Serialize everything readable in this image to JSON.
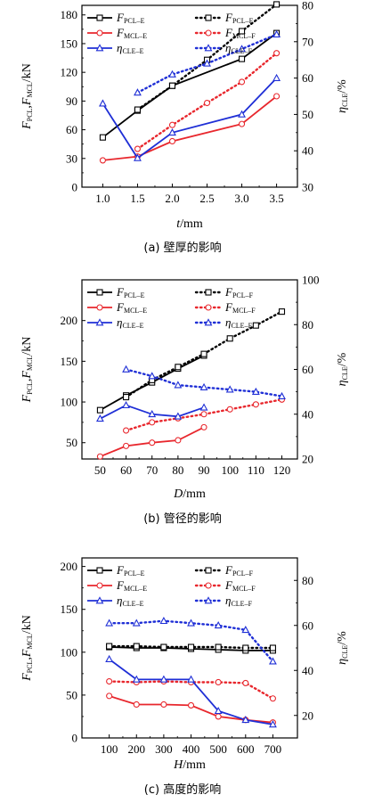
{
  "colors": {
    "black": "#000000",
    "red": "#e8272d",
    "blue": "#1f2fd6"
  },
  "chart_data": [
    {
      "type": "line",
      "caption": "(a) 壁厚的影响",
      "xlabel": "t",
      "xunit": "/mm",
      "ylabel": "F_PCL, F_MCL/kN",
      "y2label": "η_CLE/%",
      "xlim": [
        0.7,
        3.8
      ],
      "xticks": [
        "1.0",
        "1.5",
        "2.0",
        "2.5",
        "3.0",
        "3.5"
      ],
      "ylim": [
        0,
        190
      ],
      "yticks": [
        "0",
        "30",
        "60",
        "90",
        "120",
        "150",
        "180"
      ],
      "y2lim": [
        30,
        80
      ],
      "y2ticks": [
        "30",
        "40",
        "50",
        "60",
        "70",
        "80"
      ],
      "series": [
        {
          "name": "F_PCL-E",
          "color": "black",
          "style": "solid",
          "marker": "square",
          "axis": "left",
          "x": [
            1.0,
            1.5,
            2.0,
            3.0,
            3.5
          ],
          "y": [
            52,
            80,
            106,
            134,
            161
          ]
        },
        {
          "name": "F_PCL-F",
          "color": "black",
          "style": "dotted",
          "marker": "square",
          "axis": "left",
          "x": [
            1.5,
            2.0,
            2.5,
            3.0,
            3.5
          ],
          "y": [
            81,
            106,
            133,
            163,
            191
          ]
        },
        {
          "name": "F_MCL-E",
          "color": "red",
          "style": "solid",
          "marker": "circle",
          "axis": "left",
          "x": [
            1.0,
            1.5,
            2.0,
            3.0,
            3.5
          ],
          "y": [
            28,
            32,
            48,
            66,
            95
          ]
        },
        {
          "name": "F_MCL-F",
          "color": "red",
          "style": "dotted",
          "marker": "circle",
          "axis": "left",
          "x": [
            1.5,
            2.0,
            2.5,
            3.0,
            3.5
          ],
          "y": [
            40,
            65,
            88,
            110,
            140
          ]
        },
        {
          "name": "η_CLE-E",
          "color": "blue",
          "style": "solid",
          "marker": "triangle",
          "axis": "right",
          "x": [
            1.0,
            1.5,
            2.0,
            3.0,
            3.5
          ],
          "y": [
            53,
            38,
            45,
            50,
            60
          ]
        },
        {
          "name": "η_CLE-F",
          "color": "blue",
          "style": "dotted",
          "marker": "triangle",
          "axis": "right",
          "x": [
            1.5,
            2.0,
            2.5,
            3.0,
            3.5
          ],
          "y": [
            56,
            61,
            64,
            68,
            72
          ]
        }
      ]
    },
    {
      "type": "line",
      "caption": "(b) 管径的影响",
      "xlabel": "D",
      "xunit": "/mm",
      "ylabel": "F_PCL, F_MCL/kN",
      "y2label": "η_CLE/%",
      "xlim": [
        43,
        126
      ],
      "xticks": [
        "50",
        "60",
        "70",
        "80",
        "90",
        "100",
        "110",
        "120"
      ],
      "ylim": [
        30,
        250
      ],
      "yticks": [
        "50",
        "100",
        "150",
        "200"
      ],
      "y2lim": [
        20,
        100
      ],
      "y2ticks": [
        "20",
        "40",
        "60",
        "80",
        "100"
      ],
      "series": [
        {
          "name": "F_PCL-E",
          "color": "black",
          "style": "solid",
          "marker": "square",
          "axis": "left",
          "x": [
            50,
            60,
            70,
            80,
            90
          ],
          "y": [
            90,
            108,
            124,
            141,
            157
          ]
        },
        {
          "name": "F_PCL-F",
          "color": "black",
          "style": "dotted",
          "marker": "square",
          "axis": "left",
          "x": [
            60,
            70,
            80,
            90,
            100,
            110,
            120
          ],
          "y": [
            106,
            127,
            143,
            159,
            178,
            194,
            211
          ]
        },
        {
          "name": "F_MCL-E",
          "color": "red",
          "style": "solid",
          "marker": "circle",
          "axis": "left",
          "x": [
            50,
            60,
            70,
            80,
            90
          ],
          "y": [
            33,
            46,
            50,
            53,
            69
          ]
        },
        {
          "name": "F_MCL-F",
          "color": "red",
          "style": "dotted",
          "marker": "circle",
          "axis": "left",
          "x": [
            60,
            70,
            80,
            90,
            100,
            110,
            120
          ],
          "y": [
            65,
            75,
            80,
            85,
            91,
            97,
            103
          ]
        },
        {
          "name": "η_CLE-E",
          "color": "blue",
          "style": "solid",
          "marker": "triangle",
          "axis": "right",
          "x": [
            50,
            60,
            70,
            80,
            90
          ],
          "y": [
            38,
            44,
            40,
            39,
            43
          ]
        },
        {
          "name": "η_CLE-F",
          "color": "blue",
          "style": "dotted",
          "marker": "triangle",
          "axis": "right",
          "x": [
            60,
            70,
            80,
            90,
            100,
            110,
            120
          ],
          "y": [
            60,
            57,
            53,
            52,
            51,
            50,
            48
          ]
        }
      ]
    },
    {
      "type": "line",
      "caption": "(c) 高度的影响",
      "xlabel": "H",
      "xunit": "/mm",
      "ylabel": "F_PCL, F_MCL/kN",
      "y2label": "η_CLE/%",
      "xlim": [
        0,
        790
      ],
      "xticks": [
        "100",
        "200",
        "300",
        "400",
        "500",
        "600",
        "700"
      ],
      "ylim": [
        0,
        210
      ],
      "yticks": [
        "0",
        "50",
        "100",
        "150",
        "200"
      ],
      "y2lim": [
        10,
        90
      ],
      "y2ticks": [
        "20",
        "40",
        "60",
        "80"
      ],
      "series": [
        {
          "name": "F_PCL-E",
          "color": "black",
          "style": "solid",
          "marker": "square",
          "axis": "left",
          "x": [
            100,
            200,
            300,
            400,
            500,
            600,
            700
          ],
          "y": [
            106,
            105,
            105,
            104,
            103,
            102,
            102
          ]
        },
        {
          "name": "F_PCL-F",
          "color": "black",
          "style": "dotted",
          "marker": "square",
          "axis": "left",
          "x": [
            100,
            200,
            300,
            400,
            500,
            600,
            700
          ],
          "y": [
            107,
            107,
            106,
            106,
            106,
            105,
            105
          ]
        },
        {
          "name": "F_MCL-E",
          "color": "red",
          "style": "solid",
          "marker": "circle",
          "axis": "left",
          "x": [
            100,
            200,
            300,
            400,
            500,
            600,
            700
          ],
          "y": [
            49,
            39,
            39,
            38,
            25,
            21,
            18
          ]
        },
        {
          "name": "F_MCL-F",
          "color": "red",
          "style": "dotted",
          "marker": "circle",
          "axis": "left",
          "x": [
            100,
            200,
            300,
            400,
            500,
            600,
            700
          ],
          "y": [
            66,
            65,
            66,
            65,
            65,
            64,
            46
          ]
        },
        {
          "name": "η_CLE-E",
          "color": "blue",
          "style": "solid",
          "marker": "triangle",
          "axis": "right",
          "x": [
            100,
            200,
            300,
            400,
            500,
            600,
            700
          ],
          "y": [
            45,
            36,
            36,
            36,
            22,
            18,
            16
          ]
        },
        {
          "name": "η_CLE-F",
          "color": "blue",
          "style": "dotted",
          "marker": "triangle",
          "axis": "right",
          "x": [
            100,
            200,
            300,
            400,
            500,
            600,
            700
          ],
          "y": [
            61,
            61,
            62,
            61,
            60,
            58,
            44
          ]
        }
      ]
    }
  ],
  "legend": {
    "entries": [
      {
        "main": "F",
        "sub": "PCL–E",
        "color": "black",
        "style": "solid",
        "marker": "square"
      },
      {
        "main": "F",
        "sub": "PCL–F",
        "color": "black",
        "style": "dotted",
        "marker": "square"
      },
      {
        "main": "F",
        "sub": "MCL–E",
        "color": "red",
        "style": "solid",
        "marker": "circle"
      },
      {
        "main": "F",
        "sub": "MCL–F",
        "color": "red",
        "style": "dotted",
        "marker": "circle"
      },
      {
        "main": "η",
        "sub": "CLE–E",
        "color": "blue",
        "style": "solid",
        "marker": "triangle"
      },
      {
        "main": "η",
        "sub": "CLE–F",
        "color": "blue",
        "style": "dotted",
        "marker": "triangle"
      }
    ]
  },
  "ylabel_parts": {
    "f1": "F",
    "s1": "PCL",
    "sep": ",",
    "f2": "F",
    "s2": "MCL",
    "unit": "/kN"
  },
  "y2label_parts": {
    "eta": "η",
    "s": "CLE",
    "unit": "/%"
  }
}
